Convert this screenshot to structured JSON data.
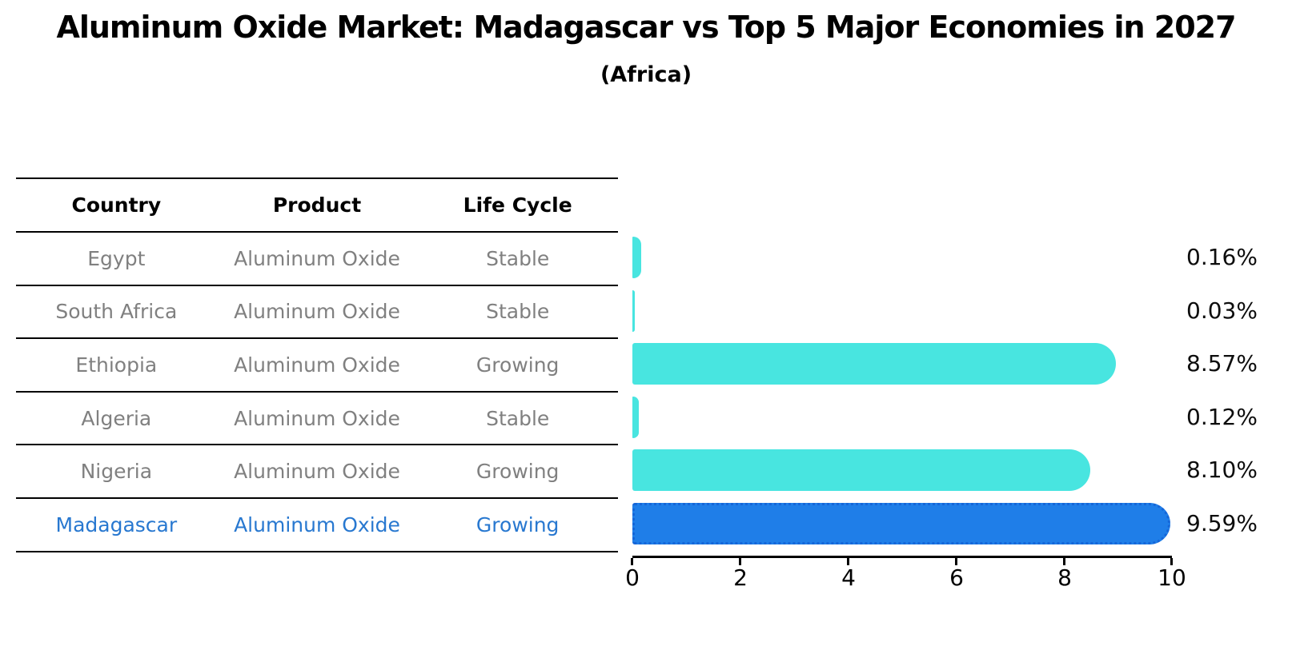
{
  "title": "Aluminum Oxide Market: Madagascar vs Top 5 Major Economies in 2027",
  "subtitle": "(Africa)",
  "table": {
    "headers": [
      "Country",
      "Product",
      "Life Cycle"
    ],
    "rows": [
      {
        "country": "Egypt",
        "product": "Aluminum Oxide",
        "life_cycle": "Stable",
        "highlighted": false
      },
      {
        "country": "South Africa",
        "product": "Aluminum Oxide",
        "life_cycle": "Stable",
        "highlighted": false
      },
      {
        "country": "Ethiopia",
        "product": "Aluminum Oxide",
        "life_cycle": "Growing",
        "highlighted": false
      },
      {
        "country": "Algeria",
        "product": "Aluminum Oxide",
        "life_cycle": "Stable",
        "highlighted": false
      },
      {
        "country": "Nigeria",
        "product": "Aluminum Oxide",
        "life_cycle": "Growing",
        "highlighted": false
      },
      {
        "country": "Madagascar",
        "product": "Aluminum Oxide",
        "life_cycle": "Growing",
        "highlighted": true
      }
    ]
  },
  "chart_data": {
    "type": "bar",
    "orientation": "horizontal",
    "title": "Aluminum Oxide Market: Madagascar vs Top 5 Major Economies in 2027",
    "subtitle": "(Africa)",
    "categories": [
      "Egypt",
      "South Africa",
      "Ethiopia",
      "Algeria",
      "Nigeria",
      "Madagascar"
    ],
    "values": [
      0.16,
      0.03,
      8.57,
      0.12,
      8.1,
      9.59
    ],
    "value_labels": [
      "0.16%",
      "0.03%",
      "8.57%",
      "0.12%",
      "8.10%",
      "9.59%"
    ],
    "xlim": [
      0,
      10
    ],
    "x_ticks": [
      "0",
      "2",
      "4",
      "6",
      "8",
      "10"
    ],
    "grid": false,
    "legend": false,
    "highlight_index": 5
  },
  "colors": {
    "bar_cyan": "#48E5E0",
    "bar_blue": "#1F7EE8",
    "bar_blue_border": "#1566D8",
    "highlight_text": "#2878D0",
    "normal_text": "#808080",
    "axis": "#000000"
  }
}
